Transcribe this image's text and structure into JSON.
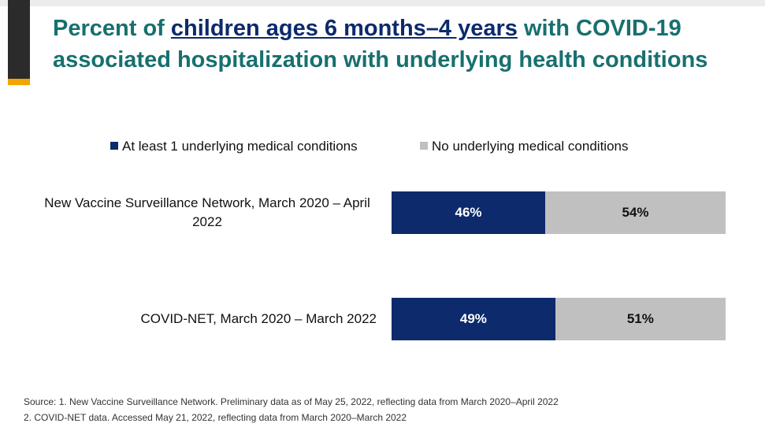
{
  "chart_data": {
    "type": "stacked-bar-horizontal",
    "title": [
      "Percent of",
      "children ages 6 months–4 years",
      "with COVID-19 associated hospitalization with underlying health conditions"
    ],
    "categories": [
      "New Vaccine Surveillance Network, March 2020 – April 2022",
      "COVID-NET, March 2020 – March 2022"
    ],
    "series": [
      {
        "name": "At least 1 underlying medical conditions",
        "color": "#0c2a6c",
        "values": [
          46,
          49
        ],
        "value_labels": [
          "46%",
          "49%"
        ]
      },
      {
        "name": "No underlying medical conditions",
        "color": "#c0c0c0",
        "values": [
          54,
          51
        ],
        "value_labels": [
          "54%",
          "51%"
        ]
      }
    ],
    "xlim": [
      0,
      100
    ],
    "legend": "top",
    "source": [
      "Source: 1. New Vaccine Surveillance Network. Preliminary data as of May 25, 2022, reflecting data from March 2020–April 2022",
      "2. COVID-NET data. Accessed May 21, 2022, reflecting data from March 2020–March 2022"
    ]
  }
}
